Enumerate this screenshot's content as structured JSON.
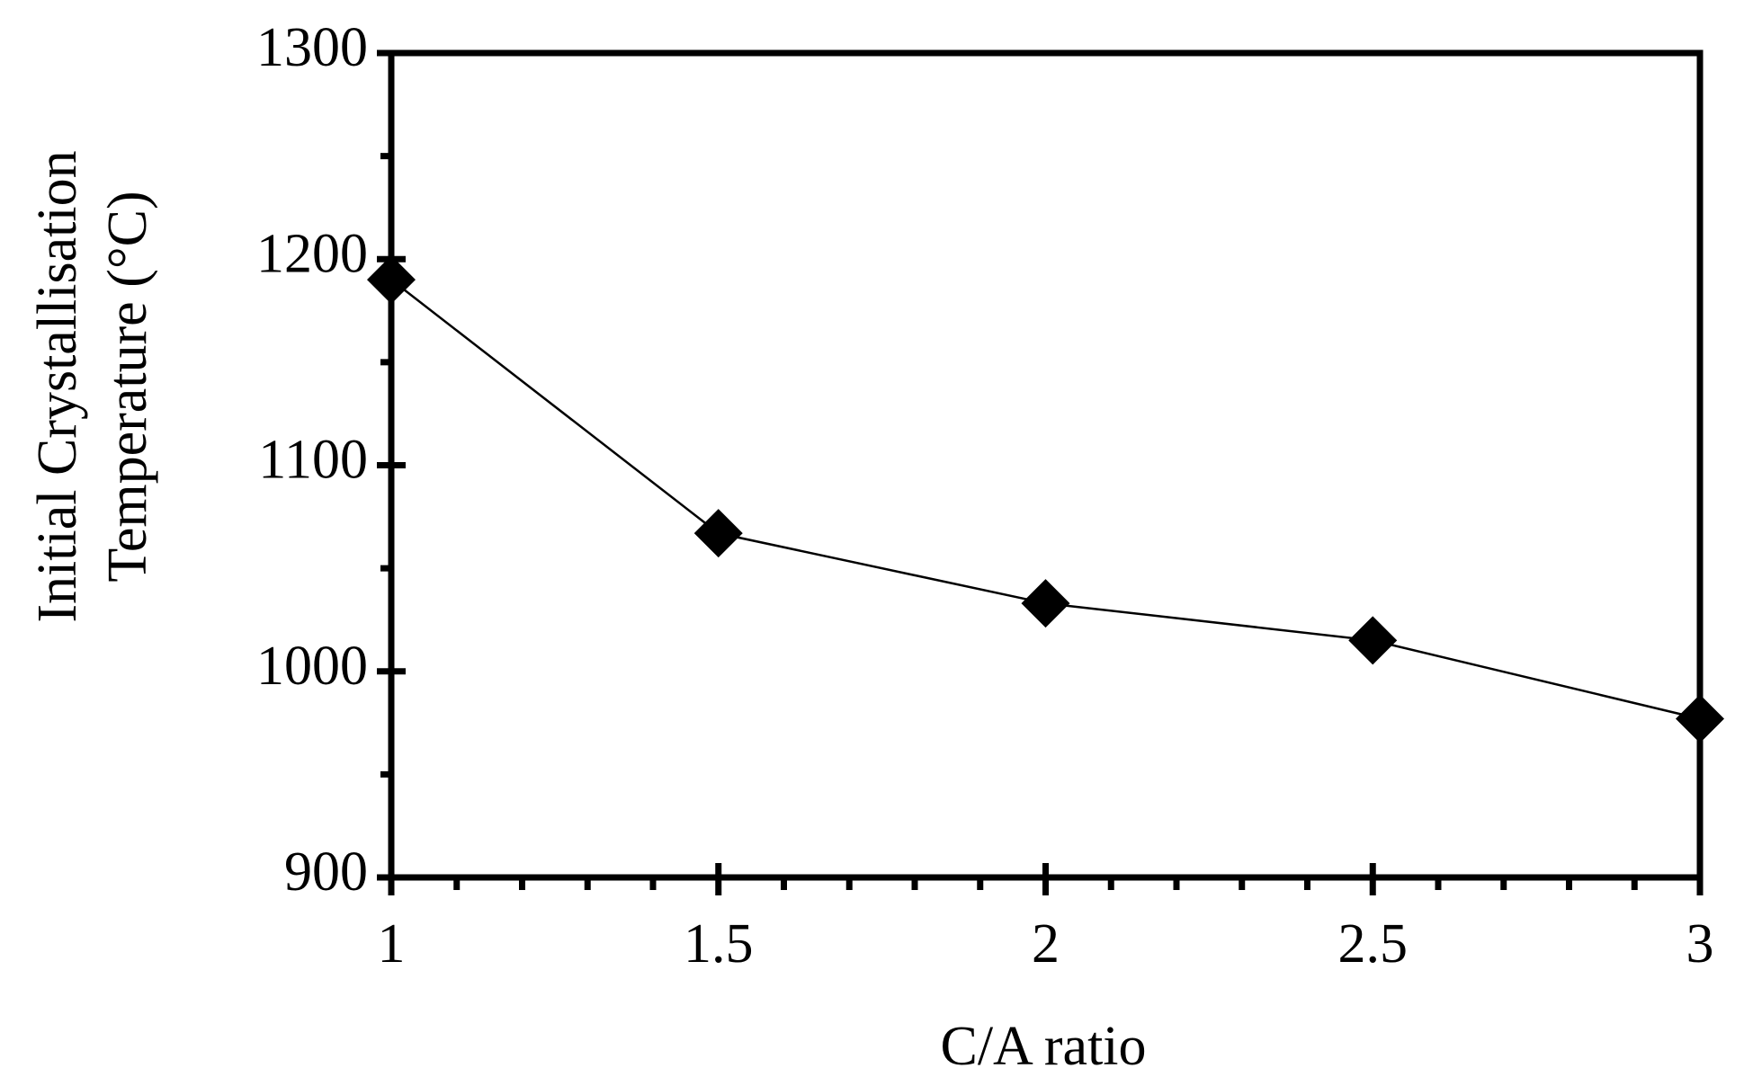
{
  "chart_data": {
    "type": "line",
    "xlabel": "C/A ratio",
    "ylabel": [
      "Initial Crystallisation",
      "Temperature (°C)"
    ],
    "x": [
      1,
      1.5,
      2,
      2.5,
      3
    ],
    "series": [
      {
        "color": "#000000",
        "values": [
          1190,
          1067,
          1033,
          1015,
          977
        ]
      }
    ],
    "xlim": [
      1,
      3
    ],
    "xticks": [
      1,
      1.5,
      2,
      2.5,
      3
    ],
    "xminorticks": [
      1.1,
      1.2,
      1.3,
      1.4,
      1.6,
      1.7,
      1.8,
      1.9,
      2.1,
      2.2,
      2.3,
      2.4,
      2.6,
      2.7,
      2.8,
      2.9
    ],
    "ylim": [
      900,
      1300
    ],
    "yticks": [
      900,
      1000,
      1100,
      1200,
      1300
    ],
    "yminorticks": [
      950,
      1050,
      1150,
      1250
    ],
    "grid": false,
    "marker": "diamond"
  }
}
